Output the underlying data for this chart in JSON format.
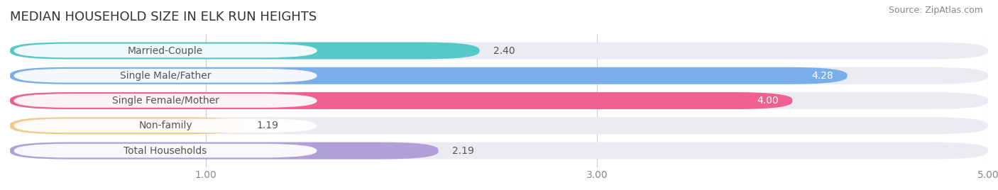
{
  "title": "MEDIAN HOUSEHOLD SIZE IN ELK RUN HEIGHTS",
  "source": "Source: ZipAtlas.com",
  "categories": [
    "Married-Couple",
    "Single Male/Father",
    "Single Female/Mother",
    "Non-family",
    "Total Households"
  ],
  "values": [
    2.4,
    4.28,
    4.0,
    1.19,
    2.19
  ],
  "bar_colors": [
    "#56c8c8",
    "#7aaeea",
    "#f06090",
    "#f5c98a",
    "#b0a0d8"
  ],
  "bar_bg_color": "#ebebf2",
  "label_bg_color": "#ffffff",
  "label_text_color": "#555555",
  "value_colors_inside": [
    "#333333",
    "#ffffff",
    "#ffffff",
    "#333333",
    "#333333"
  ],
  "xlim_min": 0,
  "xlim_max": 5.0,
  "xticks": [
    1.0,
    3.0,
    5.0
  ],
  "title_fontsize": 13,
  "source_fontsize": 9,
  "label_fontsize": 10,
  "value_fontsize": 10,
  "tick_fontsize": 10,
  "background_color": "#ffffff",
  "fig_width": 14.06,
  "fig_height": 2.68
}
